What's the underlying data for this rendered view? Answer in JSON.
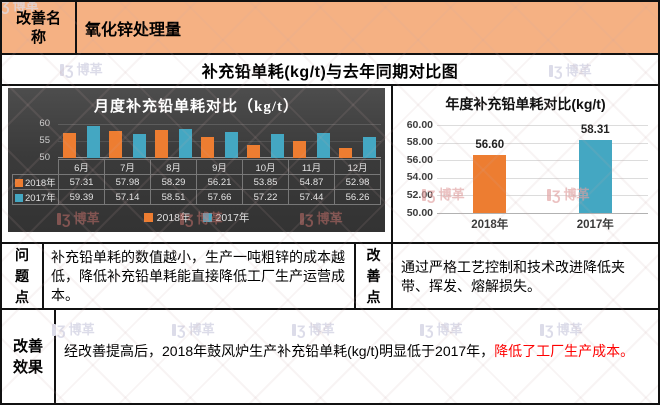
{
  "header": {
    "label": "改善名\n称",
    "value": "氧化锌处理量",
    "bg_color": "#F5B183"
  },
  "main_title": "补充铅单耗(kg/t)与去年同期对比图",
  "watermark": {
    "text": "博革"
  },
  "problem": {
    "label": "问\n题\n点",
    "text": "补充铅单耗的数值越小，生产一吨粗锌的成本越低，降低补充铅单耗能直接降低工厂生产运营成本。"
  },
  "improvement": {
    "label": "改\n善\n点",
    "text": "通过严格工艺控制和技术改进降低夹带、挥发、熔解损失。"
  },
  "effect": {
    "label": "改善\n效果",
    "text_main": "经改善提高后，2018年鼓风炉生产补充铅单耗(kg/t)明显低于2017年，",
    "text_red": "降低了工厂生产成本。",
    "red_color": "#FF0000"
  },
  "colors": {
    "orange": "#ED7D31",
    "teal": "#44A7C2",
    "dark_chart_bg": "#3B3B3B"
  },
  "chart_data": [
    {
      "type": "bar",
      "title": "月度补充铅单耗对比（kg/t）",
      "categories": [
        "6月",
        "7月",
        "8月",
        "9月",
        "10月",
        "11月",
        "12月"
      ],
      "series": [
        {
          "name": "2018年",
          "color": "#ED7D31",
          "values": [
            57.31,
            57.98,
            58.29,
            56.21,
            53.85,
            54.87,
            52.98
          ]
        },
        {
          "name": "2017年",
          "color": "#44A7C2",
          "values": [
            59.39,
            57.14,
            58.51,
            57.66,
            57.22,
            57.44,
            56.26
          ]
        }
      ],
      "ylim": [
        50,
        60
      ],
      "yticks": [
        60,
        55,
        50
      ],
      "legend_position": "bottom",
      "grid": true,
      "data_table": true
    },
    {
      "type": "bar",
      "title": "年度补充铅单耗对比(kg/t)",
      "categories": [
        "2018年",
        "2017年"
      ],
      "series": [
        {
          "name": "年度补充铅单耗",
          "values": [
            56.6,
            58.31
          ]
        }
      ],
      "bar_colors": [
        "#ED7D31",
        "#44A7C2"
      ],
      "data_labels": [
        "56.60",
        "58.31"
      ],
      "ylim": [
        50,
        60
      ],
      "yticks": [
        "60.00",
        "58.00",
        "56.00",
        "54.00",
        "52.00",
        "50.00"
      ],
      "grid": true,
      "legend_position": "none"
    }
  ]
}
